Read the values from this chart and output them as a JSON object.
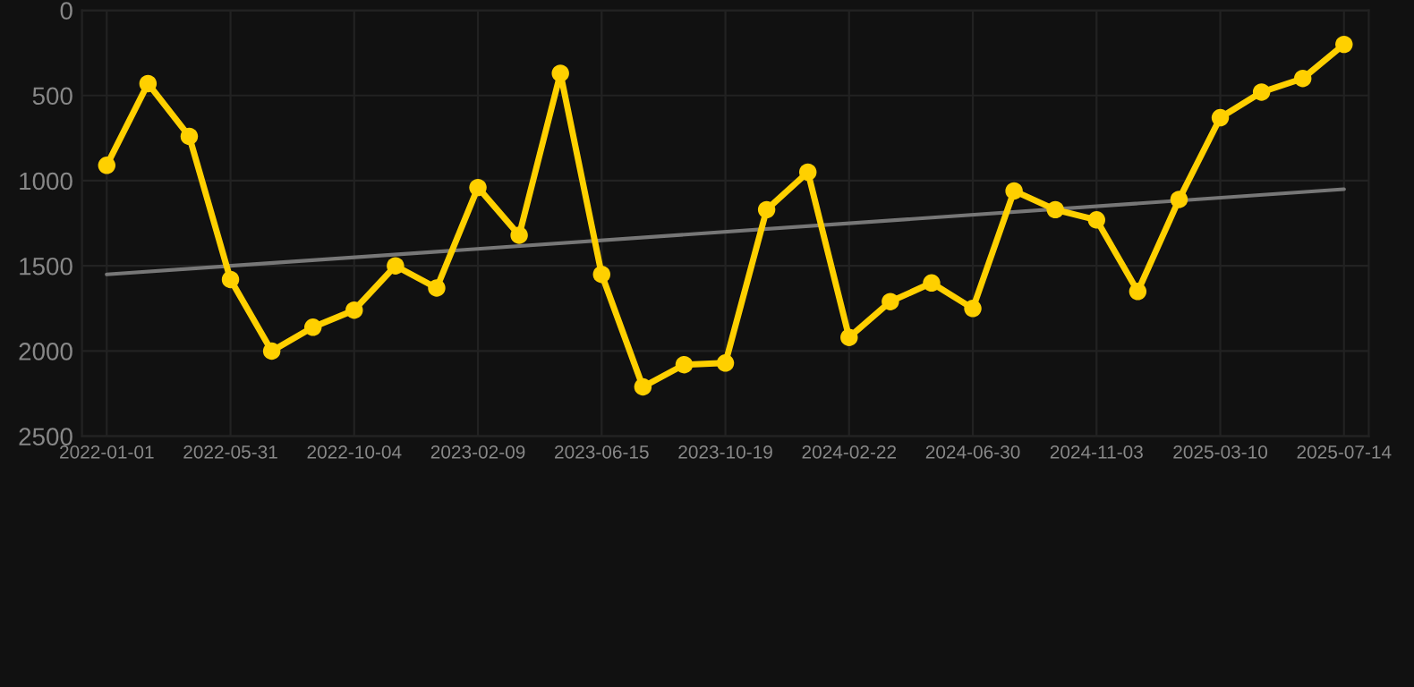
{
  "chart_data": {
    "type": "line",
    "categories": [
      "2022-01-01",
      null,
      null,
      "2022-05-31",
      null,
      null,
      "2022-10-04",
      null,
      null,
      "2023-02-09",
      null,
      null,
      "2023-06-15",
      null,
      null,
      "2023-10-19",
      null,
      null,
      "2024-02-22",
      null,
      null,
      "2024-06-30",
      null,
      null,
      "2024-11-03",
      null,
      null,
      "2025-03-10",
      null,
      null,
      "2025-07-14"
    ],
    "series": [
      {
        "color": "#ffd000",
        "marker": "circle",
        "values": [
          910,
          430,
          740,
          1580,
          2000,
          1860,
          1760,
          1500,
          1630,
          1040,
          1320,
          370,
          1550,
          2210,
          2080,
          2070,
          1170,
          950,
          1920,
          1710,
          1600,
          1750,
          1060,
          1170,
          1230,
          1650,
          1110,
          630,
          480,
          400,
          200
        ]
      },
      {
        "type": "line",
        "color": "#777777",
        "marker": "none",
        "values": [
          1550,
          null,
          null,
          null,
          null,
          null,
          null,
          null,
          null,
          null,
          null,
          null,
          null,
          null,
          null,
          null,
          null,
          null,
          null,
          null,
          null,
          null,
          null,
          null,
          null,
          null,
          null,
          null,
          null,
          null,
          1050
        ]
      }
    ],
    "ylim": [
      2500,
      0
    ],
    "yticks": [
      0,
      500,
      1000,
      1500,
      2000,
      2500
    ],
    "grid": true,
    "line_style": "solid"
  }
}
